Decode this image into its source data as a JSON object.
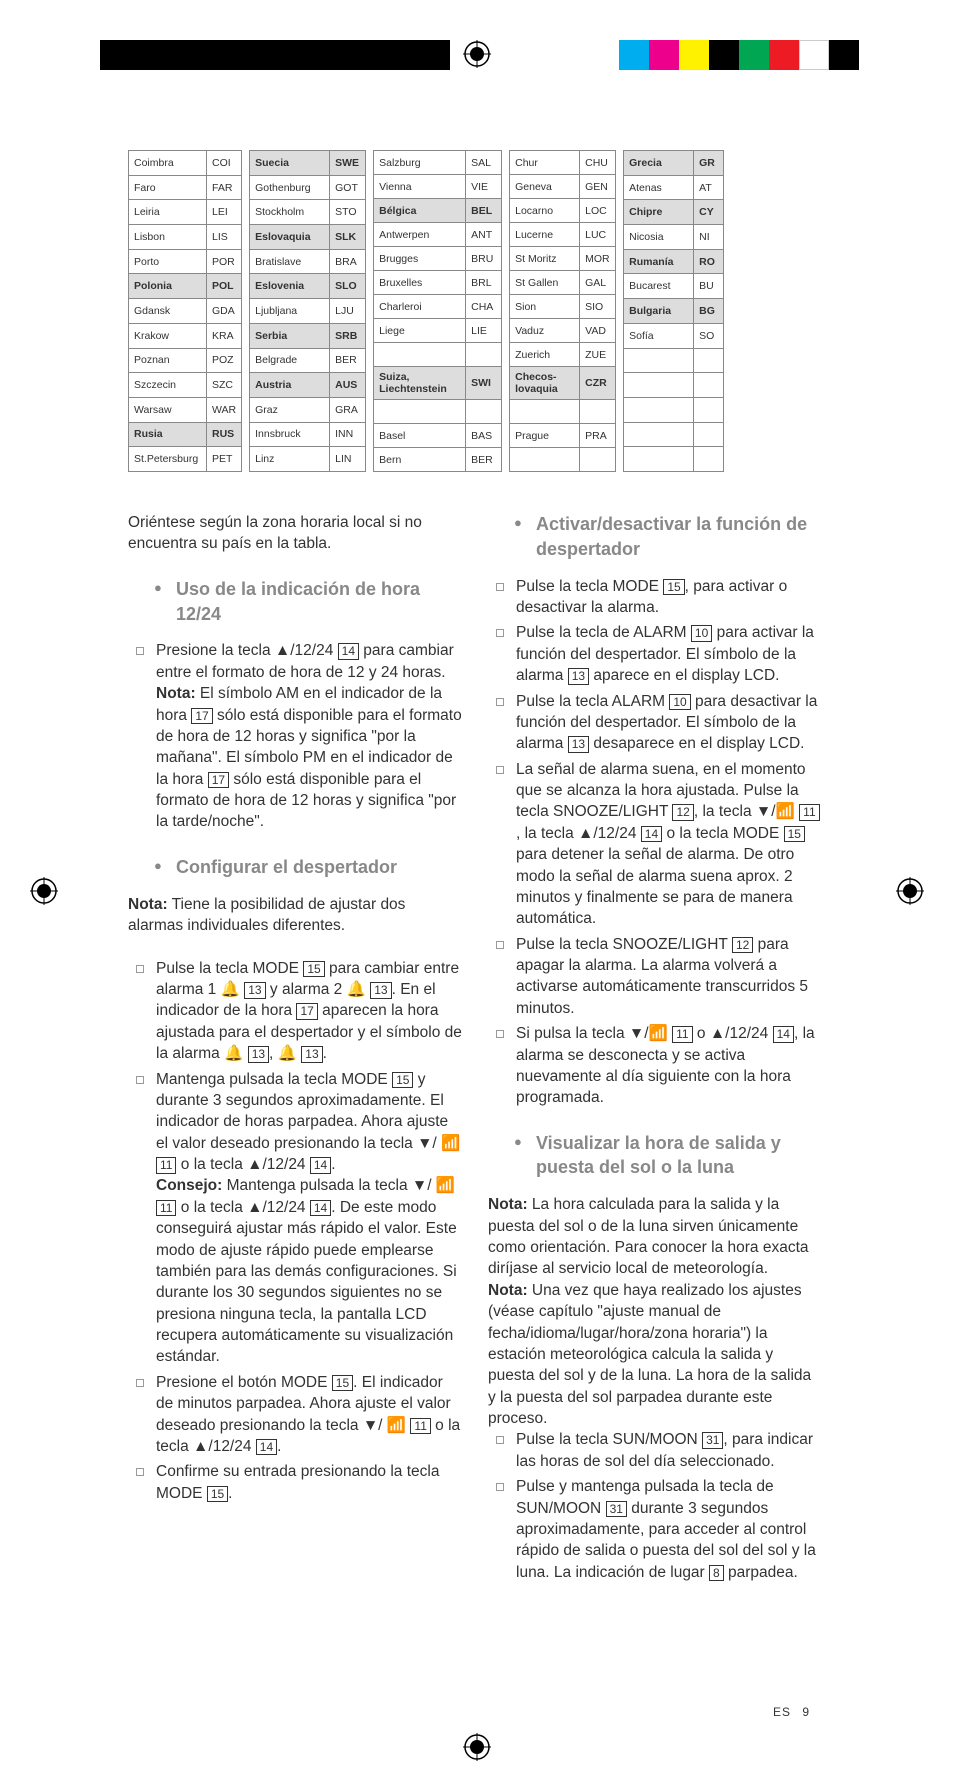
{
  "printmarks": {
    "colors": [
      "#00aeef",
      "#ec008c",
      "#fff200",
      "#000000",
      "#00a651",
      "#ed1c24",
      "#ffffff",
      "#000000"
    ]
  },
  "tables": [
    {
      "cls": "c1",
      "rows": [
        [
          "Coimbra",
          "COI"
        ],
        [
          "Faro",
          "FAR"
        ],
        [
          "Leiria",
          "LEI"
        ],
        [
          "Lisbon",
          "LIS"
        ],
        [
          "Porto",
          "POR"
        ],
        [
          "*Polonia",
          "POL"
        ],
        [
          "Gdansk",
          "GDA"
        ],
        [
          "Krakow",
          "KRA"
        ],
        [
          "Poznan",
          "POZ"
        ],
        [
          "Szczecin",
          "SZC"
        ],
        [
          "Warsaw",
          "WAR"
        ],
        [
          "*Rusia",
          "RUS"
        ],
        [
          "St.Petersburg",
          "PET"
        ]
      ]
    },
    {
      "cls": "c2",
      "rows": [
        [
          "*Suecia",
          "SWE"
        ],
        [
          "Gothenburg",
          "GOT"
        ],
        [
          "Stockholm",
          "STO"
        ],
        [
          "*Eslovaquia",
          "SLK"
        ],
        [
          "Bratislave",
          "BRA"
        ],
        [
          "*Eslovenia",
          "SLO"
        ],
        [
          "Ljubljana",
          "LJU"
        ],
        [
          "*Serbia",
          "SRB"
        ],
        [
          "Belgrade",
          "BER"
        ],
        [
          "*Austria",
          "AUS"
        ],
        [
          "Graz",
          "GRA"
        ],
        [
          "Innsbruck",
          "INN"
        ],
        [
          "Linz",
          "LIN"
        ]
      ]
    },
    {
      "cls": "c3",
      "rows": [
        [
          "Salzburg",
          "SAL"
        ],
        [
          "Vienna",
          "VIE"
        ],
        [
          "*Bélgica",
          "BEL"
        ],
        [
          "Antwerpen",
          "ANT"
        ],
        [
          "Brugges",
          "BRU"
        ],
        [
          "Bruxelles",
          "BRL"
        ],
        [
          "Charleroi",
          "CHA"
        ],
        [
          "Liege",
          "LIE"
        ],
        [
          "",
          ""
        ],
        [
          "*Suiza, Liechtenstein",
          "SWI"
        ],
        [
          "",
          ""
        ],
        [
          "Basel",
          "BAS"
        ],
        [
          "Bern",
          "BER"
        ]
      ]
    },
    {
      "cls": "c4",
      "rows": [
        [
          "Chur",
          "CHU"
        ],
        [
          "Geneva",
          "GEN"
        ],
        [
          "Locarno",
          "LOC"
        ],
        [
          "Lucerne",
          "LUC"
        ],
        [
          "St Moritz",
          "MOR"
        ],
        [
          "St Gallen",
          "GAL"
        ],
        [
          "Sion",
          "SIO"
        ],
        [
          "Vaduz",
          "VAD"
        ],
        [
          "Zuerich",
          "ZUE"
        ],
        [
          "*Checos-lovaquia",
          "CZR"
        ],
        [
          "",
          ""
        ],
        [
          "Prague",
          "PRA"
        ],
        [
          "",
          ""
        ]
      ]
    },
    {
      "cls": "c5",
      "rows": [
        [
          "*Grecia",
          "GR"
        ],
        [
          "Atenas",
          "AT"
        ],
        [
          "*Chipre",
          "CY"
        ],
        [
          "Nicosia",
          "NI"
        ],
        [
          "*Rumanía",
          "RO"
        ],
        [
          "Bucarest",
          "BU"
        ],
        [
          "*Bulgaria",
          "BG"
        ],
        [
          "Sofía",
          "SO"
        ],
        [
          "",
          ""
        ],
        [
          "",
          ""
        ],
        [
          "",
          ""
        ],
        [
          "",
          ""
        ],
        [
          "",
          ""
        ]
      ]
    }
  ],
  "intro": "Oriéntese según la zona horaria local si no encuentra su país en la tabla.",
  "left": {
    "h1": "Uso de la indicación de hora 12/24",
    "p1a": "Presione la tecla ▲/12/24 ",
    "p1b": " para cambiar entre el formato de hora de 12 y 24 horas.",
    "note_label": "Nota:",
    "p1c": " El símbolo AM en el indicador de la hora ",
    "p1d": " sólo está disponible para el formato de hora de 12 horas y significa \"por la mañana\". El símbolo PM en el indicador de la hora ",
    "p1e": " sólo está disponible para el formato de hora de 12 horas y significa \"por la tarde/noche\".",
    "h2": "Configurar el despertador",
    "note2": " Tiene la posibilidad de ajustar dos alarmas individuales diferentes.",
    "li1a": "Pulse la tecla MODE ",
    "li1b": " para cambiar entre alarma 1 ",
    "li1c": " y alarma 2 ",
    "li1d": ". En el indicador de la hora ",
    "li1e": " aparecen la hora ajustada para el despertador y el símbolo de la alarma ",
    "li1f": ".",
    "li2a": "Mantenga pulsada la tecla MODE ",
    "li2b": " y durante 3 segundos aproximadamente. El indicador de horas parpadea. Ahora ajuste el valor deseado presionando la tecla ▼/",
    "li2c": " o la tecla ▲/12/24 ",
    "li2d": ".",
    "tip_label": "Consejo:",
    "li2e": " Mantenga pulsada la tecla ▼/",
    "li2f": " o la tecla ▲/12/24 ",
    "li2g": ". De este modo conseguirá ajustar más rápido el valor. Este modo de ajuste rápido puede emplearse también para las demás configuraciones. Si durante los 30 segundos siguientes no se presiona ninguna tecla, la pantalla LCD recupera automáticamente su visualización estándar.",
    "li3a": "Presione el botón MODE ",
    "li3b": ". El indicador de minutos parpadea. Ahora ajuste el valor deseado presionando la tecla ▼/",
    "li3c": " o la tecla ▲/12/24 ",
    "li3d": ".",
    "li4a": "Confirme su entrada presionando la tecla MODE ",
    "li4b": "."
  },
  "right": {
    "h1": "Activar/desactivar la función de despertador",
    "li1a": "Pulse la tecla MODE ",
    "li1b": ", para activar o desactivar la alarma.",
    "li2a": "Pulse la tecla de ALARM ",
    "li2b": " para activar la función del despertador. El símbolo de la alarma ",
    "li2c": " aparece en el display LCD.",
    "li3a": "Pulse la tecla ALARM ",
    "li3b": " para desactivar la función del despertador. El símbolo de la alarma ",
    "li3c": " desaparece en el display LCD.",
    "li4a": "La señal de alarma suena, en el momento que se alcanza la hora ajustada. Pulse la tecla SNOOZE/LIGHT ",
    "li4b": ", la tecla ▼/",
    "li4c": ", la tecla ▲/12/24 ",
    "li4d": " o la tecla MODE ",
    "li4e": " para detener la señal de alarma. De otro modo la señal de alarma suena aprox. 2 minutos y finalmente se para de manera automática.",
    "li5a": "Pulse la tecla SNOOZE/LIGHT ",
    "li5b": " para apagar la alarma. La alarma volverá a activarse automáticamente transcurridos 5 minutos.",
    "li6a": "Si pulsa la tecla ▼/",
    "li6b": " o ▲/12/24 ",
    "li6c": ", la alarma se desconecta y se activa nuevamente al día siguiente con la hora programada.",
    "h2": "Visualizar la hora de salida y puesta del sol o la luna",
    "note_label": "Nota:",
    "note1": " La hora calculada para la salida y la puesta del sol o de la luna sirven únicamente como orientación. Para conocer la hora exacta diríjase al servicio local de meteorología.",
    "note2": " Una vez que haya realizado los ajustes (véase capítulo \"ajuste manual de fecha/idioma/lugar/hora/zona horaria\") la estación meteorológica calcula la salida y puesta del sol y de la luna. La hora de la salida y la puesta del sol parpadea durante este proceso.",
    "li7a": "Pulse la tecla SUN/MOON ",
    "li7b": ", para indicar las horas de sol del día seleccionado.",
    "li8a": "Pulse y mantenga pulsada la tecla de SUN/MOON ",
    "li8b": " durante 3 segundos aproximadamente, para acceder al control rápido de salida o puesta del sol del sol y la luna. La indicación de lugar ",
    "li8c": " parpadea."
  },
  "refs": {
    "r8": "8",
    "r10": "10",
    "r11": "11",
    "r12": "12",
    "r13": "13",
    "r14": "14",
    "r15": "15",
    "r17": "17",
    "r31": "31"
  },
  "footer": {
    "lang": "ES",
    "page": "9"
  }
}
